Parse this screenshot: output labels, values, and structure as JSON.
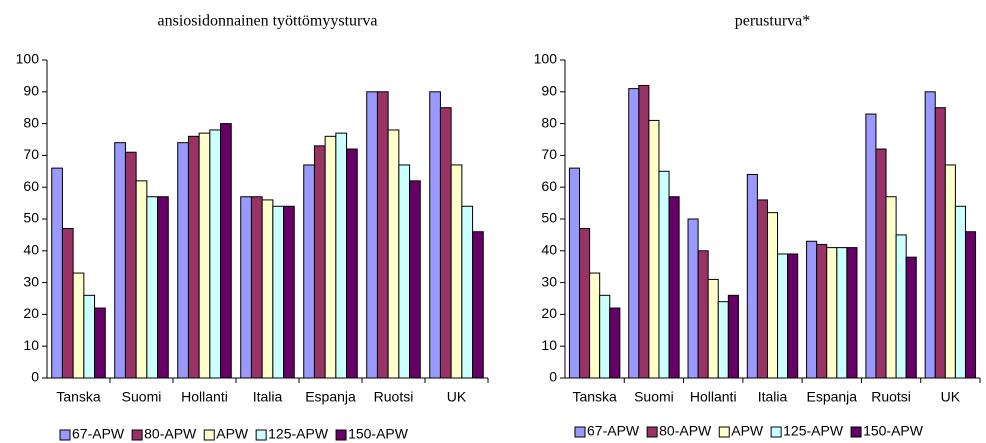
{
  "chart_data": [
    {
      "type": "bar",
      "title": "ansiosidonnainen työttömyysturva",
      "categories": [
        "Tanska",
        "Suomi",
        "Hollanti",
        "Italia",
        "Espanja",
        "Ruotsi",
        "UK"
      ],
      "series": [
        {
          "name": "67-APW",
          "color": "#9999ff",
          "values": [
            66,
            74,
            74,
            57,
            67,
            90,
            90
          ]
        },
        {
          "name": "80-APW",
          "color": "#993366",
          "values": [
            47,
            71,
            76,
            57,
            73,
            90,
            85
          ]
        },
        {
          "name": "APW",
          "color": "#ffffcc",
          "values": [
            33,
            62,
            77,
            56,
            76,
            78,
            67
          ]
        },
        {
          "name": "125-APW",
          "color": "#ccffff",
          "values": [
            26,
            57,
            78,
            54,
            77,
            67,
            54
          ]
        },
        {
          "name": "150-APW",
          "color": "#660066",
          "values": [
            22,
            57,
            80,
            54,
            72,
            62,
            46
          ]
        }
      ],
      "ylim": [
        0,
        100
      ],
      "yticks": [
        0,
        10,
        20,
        30,
        40,
        50,
        60,
        70,
        80,
        90,
        100
      ],
      "legend": "bottom"
    },
    {
      "type": "bar",
      "title": "perusturva*",
      "categories": [
        "Tanska",
        "Suomi",
        "Hollanti",
        "Italia",
        "Espanja",
        "Ruotsi",
        "UK"
      ],
      "series": [
        {
          "name": "67-APW",
          "color": "#9999ff",
          "values": [
            66,
            91,
            50,
            64,
            43,
            83,
            90
          ]
        },
        {
          "name": "80-APW",
          "color": "#993366",
          "values": [
            47,
            92,
            40,
            56,
            42,
            72,
            85
          ]
        },
        {
          "name": "APW",
          "color": "#ffffcc",
          "values": [
            33,
            81,
            31,
            52,
            41,
            57,
            67
          ]
        },
        {
          "name": "125-APW",
          "color": "#ccffff",
          "values": [
            26,
            65,
            24,
            39,
            41,
            45,
            54
          ]
        },
        {
          "name": "150-APW",
          "color": "#660066",
          "values": [
            22,
            57,
            26,
            39,
            41,
            38,
            46
          ]
        }
      ],
      "ylim": [
        0,
        100
      ],
      "yticks": [
        0,
        10,
        20,
        30,
        40,
        50,
        60,
        70,
        80,
        90,
        100
      ],
      "legend": "bottom"
    }
  ]
}
